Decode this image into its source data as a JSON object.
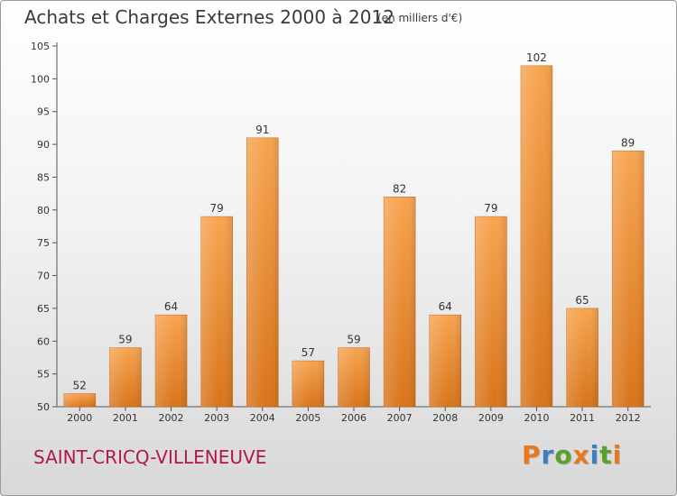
{
  "header": {
    "title": "Achats et Charges Externes 2000 à 2012",
    "subtitle": "(en milliers d'€)"
  },
  "footer": {
    "commune": "SAINT-CRICQ-VILLENEUVE",
    "brand": "Proxiti"
  },
  "colors": {
    "bar_top": "#f7a450",
    "bar_bottom": "#d8741a",
    "commune_text": "#b2184f",
    "brand_letters": [
      "#e8771e",
      "#3a7fc1",
      "#5aa02c",
      "#e8771e",
      "#3a7fc1",
      "#5aa02c",
      "#e8771e"
    ]
  },
  "chart_data": {
    "type": "bar",
    "title": "Achats et Charges Externes 2000 à 2012",
    "subtitle": "(en milliers d'€)",
    "categories": [
      "2000",
      "2001",
      "2002",
      "2003",
      "2004",
      "2005",
      "2006",
      "2007",
      "2008",
      "2009",
      "2010",
      "2011",
      "2012"
    ],
    "values": [
      52,
      59,
      64,
      79,
      91,
      57,
      59,
      82,
      64,
      79,
      102,
      65,
      89
    ],
    "ylim": [
      50,
      105
    ],
    "yticks": [
      50,
      55,
      60,
      65,
      70,
      75,
      80,
      85,
      90,
      95,
      100,
      105
    ],
    "grid": false,
    "data_labels": true
  }
}
